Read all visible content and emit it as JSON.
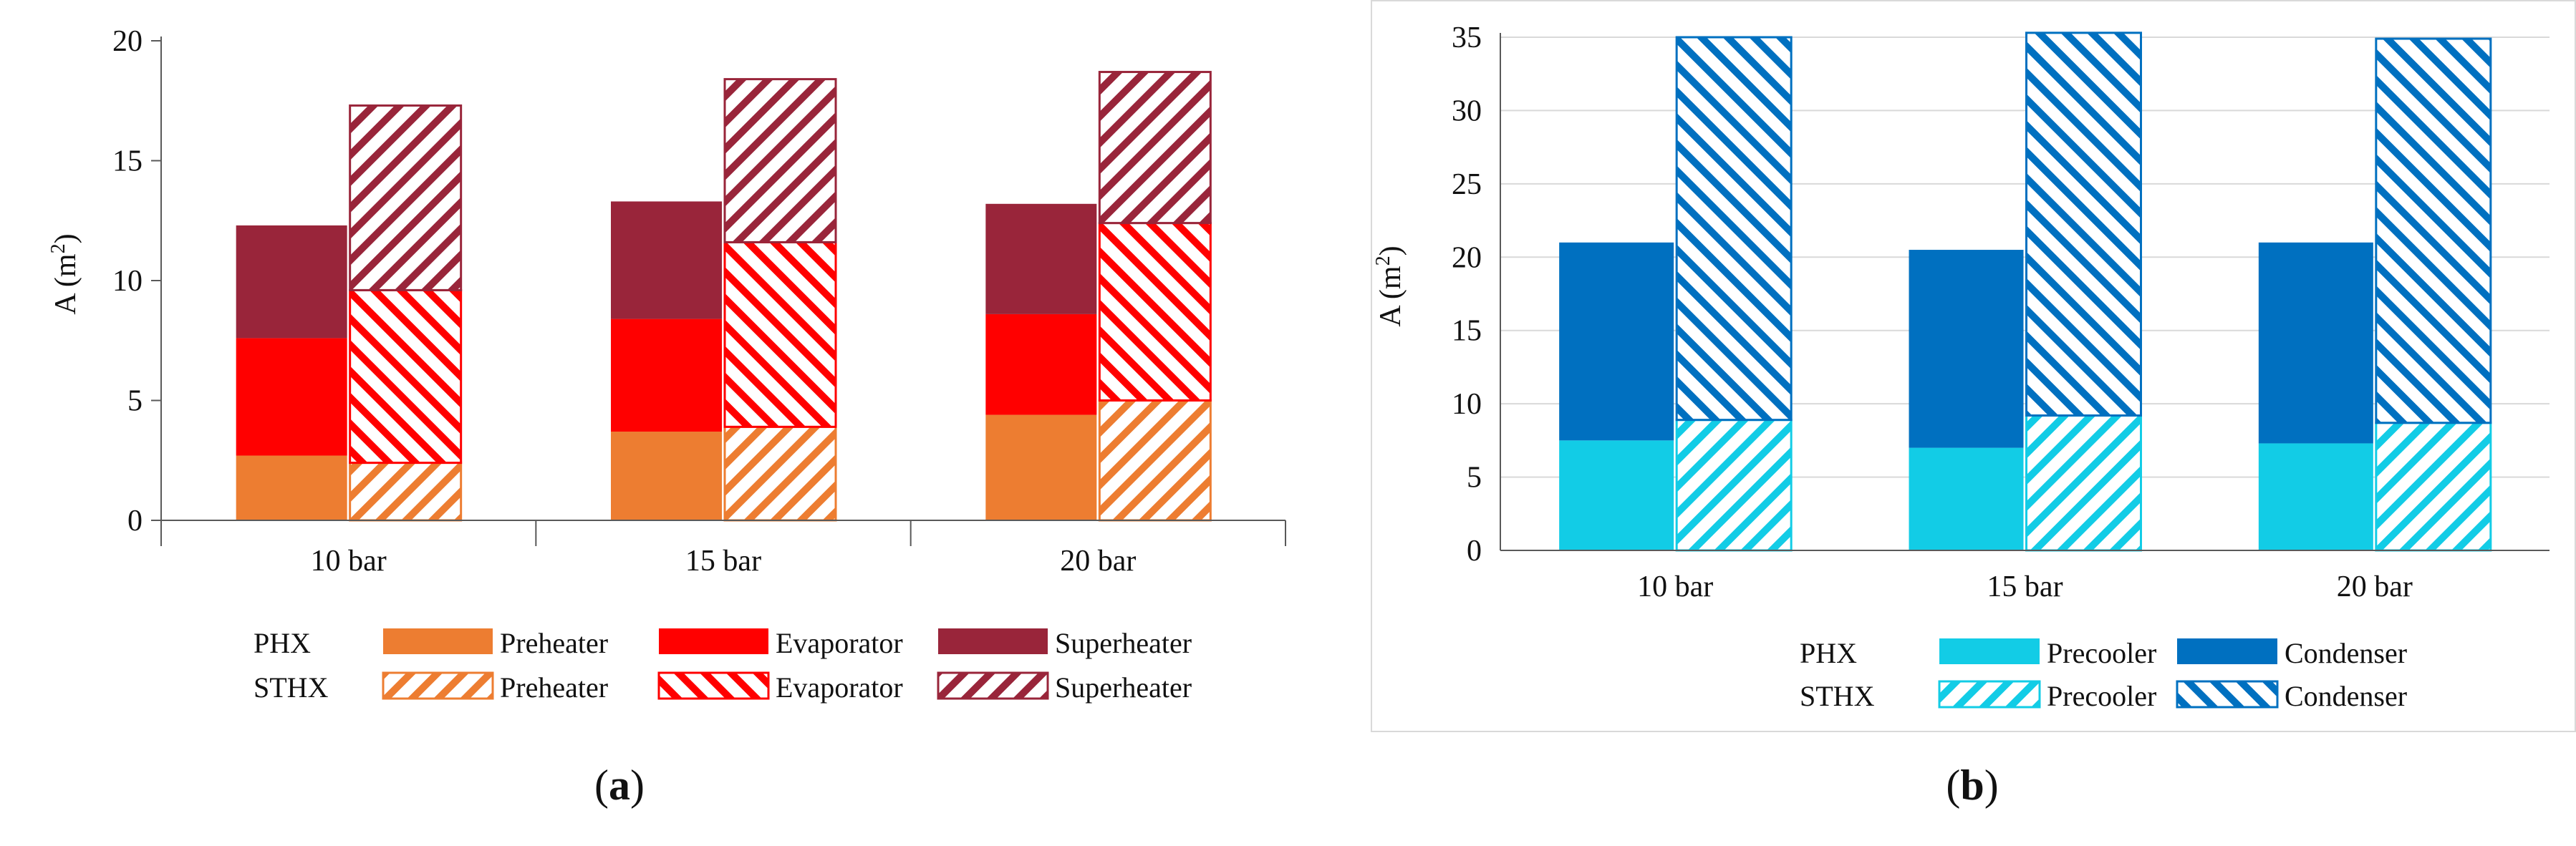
{
  "chart_data": [
    {
      "id": "a",
      "type": "bar",
      "stacked": true,
      "categories": [
        "10 bar",
        "15 bar",
        "20 bar"
      ],
      "ylabel": "A (m",
      "ylabel_sup": "2",
      "ylabel_close": ")",
      "ylim": [
        0,
        20
      ],
      "yticks": [
        0,
        5,
        10,
        15,
        20
      ],
      "groups": [
        "PHX",
        "STHX"
      ],
      "series": [
        {
          "group": "PHX",
          "name": "Preheater",
          "color": "#ED7D31",
          "pattern": "solid",
          "values": [
            2.7,
            3.7,
            4.4
          ]
        },
        {
          "group": "PHX",
          "name": "Evaporator",
          "color": "#FF0000",
          "pattern": "solid",
          "values": [
            4.9,
            4.7,
            4.2
          ]
        },
        {
          "group": "PHX",
          "name": "Superheater",
          "color": "#99253A",
          "pattern": "solid",
          "values": [
            4.7,
            4.9,
            4.6
          ]
        },
        {
          "group": "STHX",
          "name": "Preheater",
          "color": "#ED7D31",
          "pattern": "hatch-right",
          "values": [
            2.4,
            3.9,
            5.0
          ]
        },
        {
          "group": "STHX",
          "name": "Evaporator",
          "color": "#FF0000",
          "pattern": "hatch-left",
          "values": [
            7.2,
            7.7,
            7.4
          ]
        },
        {
          "group": "STHX",
          "name": "Superheater",
          "color": "#99253A",
          "pattern": "hatch-right",
          "values": [
            7.7,
            6.8,
            6.3
          ]
        }
      ],
      "legend_rows": [
        {
          "label": "PHX",
          "items": [
            0,
            1,
            2
          ]
        },
        {
          "label": "STHX",
          "items": [
            3,
            4,
            5
          ]
        }
      ],
      "caption": {
        "open": "(",
        "letter": "a",
        "close": ")"
      }
    },
    {
      "id": "b",
      "type": "bar",
      "stacked": true,
      "categories": [
        "10 bar",
        "15 bar",
        "20 bar"
      ],
      "ylabel": "A (m",
      "ylabel_sup": "2",
      "ylabel_close": ")",
      "ylim": [
        0,
        35
      ],
      "yticks": [
        0,
        5,
        10,
        15,
        20,
        25,
        30,
        35
      ],
      "grid": true,
      "groups": [
        "PHX",
        "STHX"
      ],
      "series": [
        {
          "group": "PHX",
          "name": "Precooler",
          "color": "#12CCE6",
          "pattern": "solid",
          "values": [
            7.5,
            7.0,
            7.3
          ]
        },
        {
          "group": "PHX",
          "name": "Condenser",
          "color": "#0070C0",
          "pattern": "solid",
          "values": [
            13.5,
            13.5,
            13.7
          ]
        },
        {
          "group": "STHX",
          "name": "Precooler",
          "color": "#12CCE6",
          "pattern": "hatch-right",
          "values": [
            8.9,
            9.2,
            8.7
          ]
        },
        {
          "group": "STHX",
          "name": "Condenser",
          "color": "#0070C0",
          "pattern": "hatch-left",
          "values": [
            26.1,
            26.1,
            26.2
          ]
        }
      ],
      "legend_rows": [
        {
          "label": "PHX",
          "items": [
            0,
            1
          ]
        },
        {
          "label": "STHX",
          "items": [
            2,
            3
          ]
        }
      ],
      "caption": {
        "open": "(",
        "letter": "b",
        "close": ")"
      }
    }
  ]
}
